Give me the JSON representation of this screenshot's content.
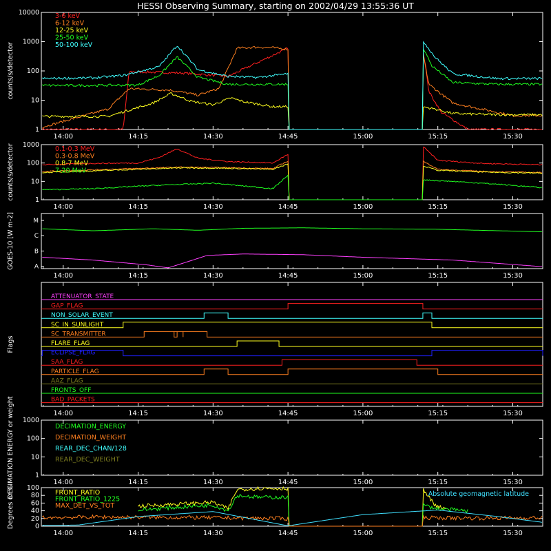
{
  "title": "HESSI Observing Summary, starting on 2002/04/29 13:55:36 UT",
  "time_ticks": [
    "14:00",
    "14:15",
    "14:30",
    "14:45",
    "15:00",
    "15:15",
    "15:30"
  ],
  "chart_data": [
    {
      "id": "lo",
      "type": "line",
      "ylabel": "counts/s/detector",
      "yscale": "log",
      "ylim": [
        1,
        10000
      ],
      "y_ticks": [
        "1",
        "10",
        "100",
        "1000",
        "10000"
      ],
      "legend_placement": "top-left",
      "series": [
        {
          "name": "3-6 keV",
          "color": "#ff2020",
          "gap": [
            14.75,
            15.2
          ],
          "x": [
            13.93,
            14.2,
            14.22,
            14.4,
            14.55,
            14.75,
            15.2,
            15.22,
            15.26,
            15.35,
            15.6
          ],
          "y": [
            1,
            1,
            95,
            85,
            65,
            600,
            600,
            20,
            4,
            1,
            1
          ]
        },
        {
          "name": "6-12 keV",
          "color": "#ff8020",
          "gap": [
            14.75,
            15.2
          ],
          "x": [
            13.93,
            14.15,
            14.22,
            14.36,
            14.45,
            14.52,
            14.58,
            14.65,
            14.7,
            14.75,
            15.2,
            15.22,
            15.3,
            15.5,
            15.6
          ],
          "y": [
            1.2,
            5,
            25,
            22,
            15,
            25,
            600,
            650,
            620,
            550,
            450,
            35,
            8,
            3,
            3
          ]
        },
        {
          "name": "12-25 keV",
          "color": "#ffff20",
          "gap": [
            14.75,
            15.2
          ],
          "x": [
            13.93,
            14.15,
            14.2,
            14.3,
            14.36,
            14.43,
            14.5,
            14.56,
            14.6,
            14.7,
            14.75,
            15.2,
            15.24,
            15.3,
            15.45,
            15.6
          ],
          "y": [
            2.8,
            2.8,
            4,
            8,
            17,
            9,
            7,
            12,
            9,
            6,
            6,
            6,
            5,
            3.5,
            3.2,
            3.2
          ]
        },
        {
          "name": "25-50 keV",
          "color": "#20ff20",
          "gap": [
            14.75,
            15.2
          ],
          "x": [
            13.93,
            14.1,
            14.25,
            14.32,
            14.38,
            14.45,
            14.55,
            14.75,
            15.2,
            15.23,
            15.3,
            15.45,
            15.6
          ],
          "y": [
            32,
            32,
            33,
            70,
            300,
            60,
            35,
            35,
            650,
            150,
            40,
            35,
            35
          ]
        },
        {
          "name": "50-100 keV",
          "color": "#40ffff",
          "gap": [
            14.75,
            15.2
          ],
          "x": [
            13.93,
            14.1,
            14.2,
            14.32,
            14.38,
            14.45,
            14.55,
            14.65,
            14.75,
            15.2,
            15.24,
            15.3,
            15.45,
            15.6
          ],
          "y": [
            55,
            58,
            70,
            140,
            750,
            110,
            65,
            60,
            80,
            1100,
            300,
            80,
            55,
            55
          ]
        }
      ]
    },
    {
      "id": "hi",
      "type": "line",
      "ylabel": "counts/s/detector",
      "yscale": "log",
      "ylim": [
        1,
        1000
      ],
      "y_ticks": [
        "1",
        "10",
        "100",
        "1000"
      ],
      "legend_placement": "top-left",
      "series": [
        {
          "name": "0.1-0.3 MeV",
          "color": "#ff2020",
          "gap": [
            14.75,
            15.2
          ],
          "x": [
            13.93,
            14.1,
            14.25,
            14.32,
            14.38,
            14.45,
            14.55,
            14.7,
            14.75,
            15.2,
            15.25,
            15.4,
            15.6
          ],
          "y": [
            80,
            95,
            100,
            200,
            600,
            180,
            120,
            100,
            300,
            800,
            140,
            95,
            80
          ]
        },
        {
          "name": "0.3-0.8 MeV",
          "color": "#ff8020",
          "gap": [
            14.75,
            15.2
          ],
          "x": [
            13.93,
            14.15,
            14.4,
            14.55,
            14.7,
            14.75,
            15.2,
            15.25,
            15.4,
            15.6
          ],
          "y": [
            35,
            45,
            60,
            55,
            50,
            130,
            130,
            45,
            35,
            30
          ]
        },
        {
          "name": "0.8-7 MeV",
          "color": "#ffff20",
          "gap": [
            14.75,
            15.2
          ],
          "x": [
            13.93,
            14.15,
            14.4,
            14.55,
            14.7,
            14.75,
            15.2,
            15.25,
            15.4,
            15.6
          ],
          "y": [
            30,
            40,
            55,
            52,
            45,
            90,
            70,
            40,
            32,
            28
          ]
        },
        {
          "name": "7-20 MeV",
          "color": "#20ff20",
          "gap": [
            14.75,
            15.2
          ],
          "x": [
            13.93,
            14.1,
            14.3,
            14.5,
            14.7,
            14.75,
            15.2,
            15.3,
            15.45,
            15.6
          ],
          "y": [
            3.5,
            4,
            6,
            8,
            4,
            22,
            12,
            10,
            7,
            4.5
          ]
        }
      ]
    },
    {
      "id": "goes",
      "type": "line",
      "ylabel": "GOES-10 [W m-2]",
      "yscale": "log",
      "ylim": [
        0.7,
        5
      ],
      "y_ticks": [
        "A",
        "B",
        "C",
        "M"
      ],
      "series": [
        {
          "color": "#20ff20",
          "x": [
            13.93,
            14.1,
            14.3,
            14.45,
            14.6,
            14.8,
            15.0,
            15.25,
            15.6
          ],
          "y": [
            2.9,
            2.7,
            2.9,
            2.75,
            2.95,
            3.0,
            2.9,
            2.85,
            2.6
          ]
        },
        {
          "color": "#ff40ff",
          "x": [
            13.93,
            14.1,
            14.28,
            14.35,
            14.4,
            14.48,
            14.6,
            14.8,
            15.0,
            15.3,
            15.6
          ],
          "y": [
            1.05,
            0.95,
            0.8,
            0.72,
            0.85,
            1.12,
            1.18,
            1.15,
            1.05,
            0.95,
            0.75
          ]
        }
      ]
    },
    {
      "id": "flags",
      "type": "line",
      "ylabel": "Flags",
      "flags": [
        {
          "name": "ATTENUATOR_STATE",
          "color": "#ff40ff",
          "on": []
        },
        {
          "name": "GAP_FLAG",
          "color": "#ff2020",
          "on": [
            [
              14.75,
              15.2
            ]
          ]
        },
        {
          "name": "NON_SOLAR_EVENT",
          "color": "#40ffff",
          "on": [
            [
              14.47,
              14.55
            ],
            [
              15.2,
              15.23
            ]
          ]
        },
        {
          "name": "SC_IN_SUNLIGHT",
          "color": "#ffff20",
          "on": [
            [
              14.2,
              15.23
            ]
          ]
        },
        {
          "name": "SC_TRANSMITTER",
          "color": "#ff8020",
          "on": [
            [
              14.27,
              14.38
            ],
            [
              14.37,
              14.4
            ],
            [
              14.4,
              14.48
            ]
          ]
        },
        {
          "name": "FLARE_FLAG",
          "color": "#ffff20",
          "on": [
            [
              14.58,
              14.72
            ]
          ]
        },
        {
          "name": "ECLIPSE_FLAG",
          "color": "#2020ff",
          "on": [
            [
              13.93,
              14.2
            ],
            [
              15.23,
              15.6
            ]
          ]
        },
        {
          "name": "SAA_FLAG",
          "color": "#ff2020",
          "on": [
            [
              14.73,
              15.18
            ]
          ]
        },
        {
          "name": "PARTICLE_FLAG",
          "color": "#ff8020",
          "on": [
            [
              14.47,
              14.55
            ],
            [
              14.75,
              15.25
            ]
          ]
        },
        {
          "name": "AAZ_FLAG",
          "color": "#808020",
          "on": []
        },
        {
          "name": "FRONTS_OFF",
          "color": "#20ff20",
          "on": []
        },
        {
          "name": "BAD_PACKETS",
          "color": "#ff2020",
          "on": []
        }
      ]
    },
    {
      "id": "decim",
      "type": "line",
      "ylabel": "DECIMATION ENERGY or weight",
      "yscale": "log",
      "ylim": [
        1,
        1000
      ],
      "y_ticks": [
        "1",
        "10",
        "100",
        "1000"
      ],
      "legend_placement": "top-left",
      "series": [
        {
          "name": "DECIMATION_ENERGY",
          "color": "#20ff20",
          "x": [],
          "y": []
        },
        {
          "name": "DECIMATION_WEIGHT",
          "color": "#ff8020",
          "x": [],
          "y": []
        },
        {
          "name": "REAR_DEC_CHAN/128",
          "color": "#40ffff",
          "x": [],
          "y": []
        },
        {
          "name": "REAR_DEC_WEIGHT",
          "color": "#808020",
          "x": [],
          "y": []
        }
      ]
    },
    {
      "id": "ratio",
      "type": "line",
      "ylabel": "Degrees or %",
      "yscale": "linear",
      "ylim": [
        0,
        100
      ],
      "y_ticks": [
        "0",
        "20",
        "40",
        "60",
        "80",
        "100"
      ],
      "legend_placement": "top-left",
      "annotation": "Absolute geomagnetic latitude",
      "series": [
        {
          "name": "FRONT_RATIO",
          "color": "#ffff20",
          "gap": [
            14.75,
            15.2
          ],
          "x": [
            14.25,
            14.4,
            14.5,
            14.55,
            14.58,
            14.65,
            14.75,
            15.2,
            15.24,
            15.28
          ],
          "y": [
            52,
            58,
            62,
            45,
            95,
            98,
            98,
            98,
            55,
            45
          ]
        },
        {
          "name": "FRONT_RATIO_1225",
          "color": "#20ff20",
          "gap": [
            14.75,
            15.2
          ],
          "x": [
            14.25,
            14.4,
            14.5,
            14.55,
            14.58,
            14.65,
            14.75,
            15.2,
            15.25,
            15.35
          ],
          "y": [
            42,
            50,
            55,
            40,
            80,
            75,
            75,
            55,
            45,
            40
          ]
        },
        {
          "name": "MAX_DET_VS_TOT",
          "color": "#ff8020",
          "gap": [
            14.75,
            15.2
          ],
          "x": [
            13.93,
            14.1,
            14.3,
            14.5,
            14.75,
            15.2,
            15.4,
            15.6
          ],
          "y": [
            22,
            24,
            23,
            22,
            20,
            22,
            21,
            22
          ]
        },
        {
          "name": "Absolute geomagnetic latitude",
          "color": "#40e0ff",
          "x": [
            13.93,
            14.05,
            14.25,
            14.5,
            14.75,
            15.0,
            15.25,
            15.45,
            15.6
          ],
          "y": [
            2,
            3,
            25,
            38,
            1,
            30,
            42,
            25,
            10
          ]
        }
      ]
    }
  ]
}
